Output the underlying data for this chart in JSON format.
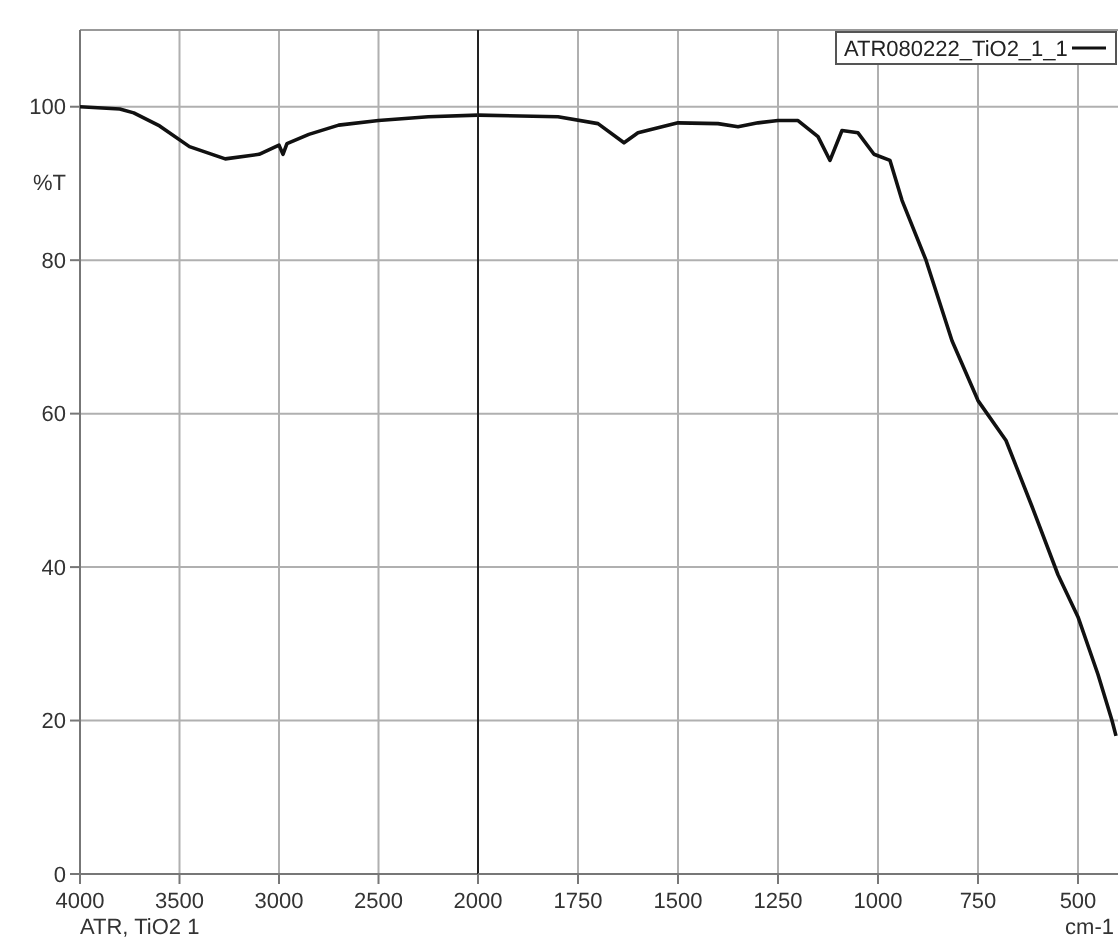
{
  "chart_data": [
    {
      "type": "line",
      "ylabel": "%T",
      "annotations": [
        "ATR, TiO2 1"
      ],
      "x": [
        4000,
        3800,
        3730,
        3600,
        3450,
        3270,
        3100,
        3000,
        2980,
        2960,
        2850,
        2700,
        2500,
        2250,
        2000
      ],
      "series": [
        {
          "color": "#111111",
          "values": [
            100,
            99.7,
            99.2,
            97.5,
            94.8,
            93.2,
            93.8,
            95,
            93.8,
            95.2,
            96.4,
            97.6,
            98.2,
            98.7,
            98.9
          ]
        }
      ],
      "xlim": [
        4000,
        2000
      ],
      "xticks": [
        4000,
        3500,
        3000,
        2500
      ],
      "ylim": [
        0,
        110
      ],
      "yticks": [
        0,
        20,
        40,
        60,
        80,
        100
      ],
      "grid": true,
      "line_style": "solid"
    },
    {
      "type": "line",
      "xlabel": "cm-1",
      "x": [
        2000,
        1800,
        1700,
        1635,
        1600,
        1500,
        1400,
        1350,
        1300,
        1250,
        1200,
        1150,
        1120,
        1090,
        1050,
        1010,
        970,
        940,
        880,
        815,
        750,
        680,
        615,
        550,
        500,
        450,
        415,
        405
      ],
      "series": [
        {
          "name": "ATR080222_TiO2_1_1",
          "color": "#111111",
          "values": [
            98.9,
            98.7,
            97.8,
            95.3,
            96.6,
            97.9,
            97.8,
            97.4,
            97.9,
            98.2,
            98.2,
            96.1,
            93,
            96.9,
            96.6,
            93.8,
            93,
            87.8,
            80,
            69.5,
            61.7,
            56.5,
            47.9,
            39,
            33.5,
            26,
            20,
            18
          ]
        }
      ],
      "xlim": [
        2000,
        400
      ],
      "xticks": [
        2000,
        1750,
        1500,
        1250,
        1000,
        750,
        500
      ],
      "ylim": [
        0,
        110
      ],
      "yticks": [
        0,
        20,
        40,
        60,
        80,
        100
      ],
      "tick_labels": "x",
      "grid": true,
      "legend": "top right",
      "line_style": "solid"
    }
  ]
}
